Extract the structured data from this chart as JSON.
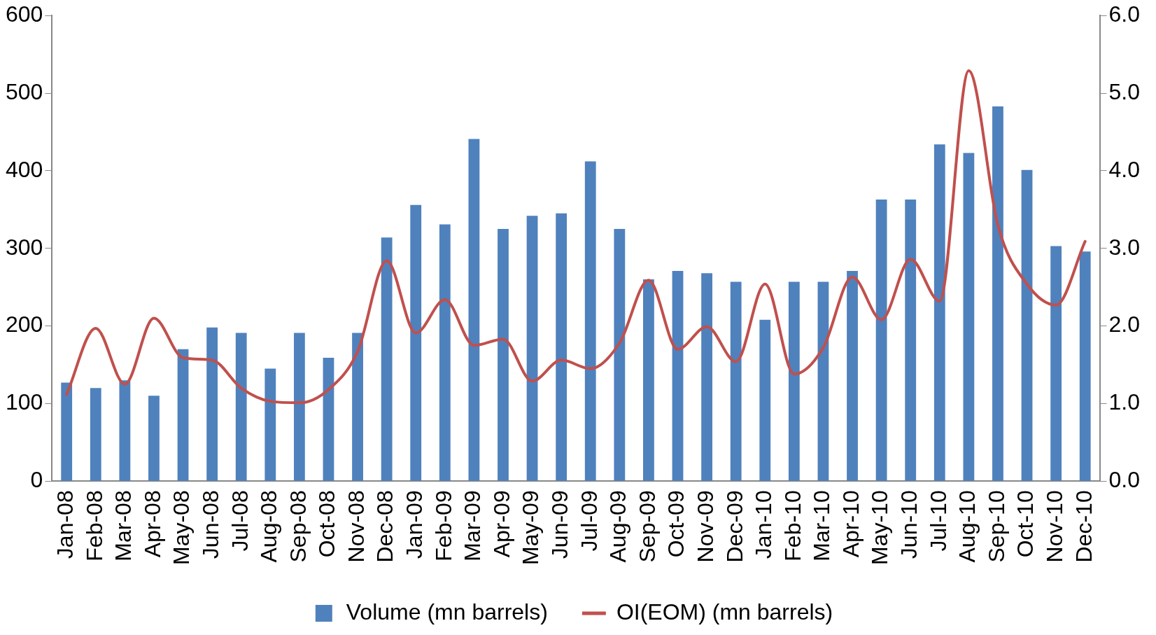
{
  "chart_data": {
    "type": "bar",
    "categories": [
      "Jan-08",
      "Feb-08",
      "Mar-08",
      "Apr-08",
      "May-08",
      "Jun-08",
      "Jul-08",
      "Aug-08",
      "Sep-08",
      "Oct-08",
      "Nov-08",
      "Dec-08",
      "Jan-09",
      "Feb-09",
      "Mar-09",
      "Apr-09",
      "May-09",
      "Jun-09",
      "Jul-09",
      "Aug-09",
      "Sep-09",
      "Oct-09",
      "Nov-09",
      "Dec-09",
      "Jan-10",
      "Feb-10",
      "Mar-10",
      "Apr-10",
      "May-10",
      "Jun-10",
      "Jul-10",
      "Aug-10",
      "Sep-10",
      "Oct-10",
      "Nov-10",
      "Dec-10"
    ],
    "series": [
      {
        "name": "Volume (mn barrels)",
        "color": "#4f81bd",
        "values": [
          127,
          120,
          130,
          110,
          170,
          198,
          191,
          145,
          191,
          159,
          191,
          314,
          356,
          331,
          441,
          325,
          342,
          345,
          412,
          325,
          260,
          271,
          268,
          257,
          208,
          257,
          257,
          271,
          363,
          363,
          434,
          423,
          483,
          401,
          303,
          296
        ]
      },
      {
        "name": "OI(EOM) (mn barrels)",
        "type": "line",
        "axis": "y2",
        "color": "#c0504d",
        "values": [
          1.12,
          1.97,
          1.25,
          2.1,
          1.59,
          1.56,
          1.2,
          1.03,
          1.01,
          1.18,
          1.67,
          2.84,
          1.91,
          2.34,
          1.75,
          1.83,
          1.29,
          1.56,
          1.45,
          1.78,
          2.59,
          1.7,
          1.99,
          1.54,
          2.54,
          1.38,
          1.72,
          2.63,
          2.08,
          2.86,
          2.32,
          5.29,
          3.3,
          2.54,
          2.27,
          3.09
        ]
      }
    ],
    "ylim": [
      0,
      600
    ],
    "yticks": [
      0,
      100,
      200,
      300,
      400,
      500,
      600
    ],
    "y2lim": [
      0,
      6
    ],
    "y2ticks": [
      {
        "value": 0,
        "label": "0.0"
      },
      {
        "value": 1,
        "label": "1.0"
      },
      {
        "value": 2,
        "label": "2.0"
      },
      {
        "value": 3,
        "label": "3.0"
      },
      {
        "value": 4,
        "label": "4.0"
      },
      {
        "value": 5,
        "label": "5.0"
      },
      {
        "value": 6,
        "label": "6.0"
      }
    ],
    "grid": false,
    "legend": "bottom",
    "marker": "none",
    "line_style": "solid"
  }
}
